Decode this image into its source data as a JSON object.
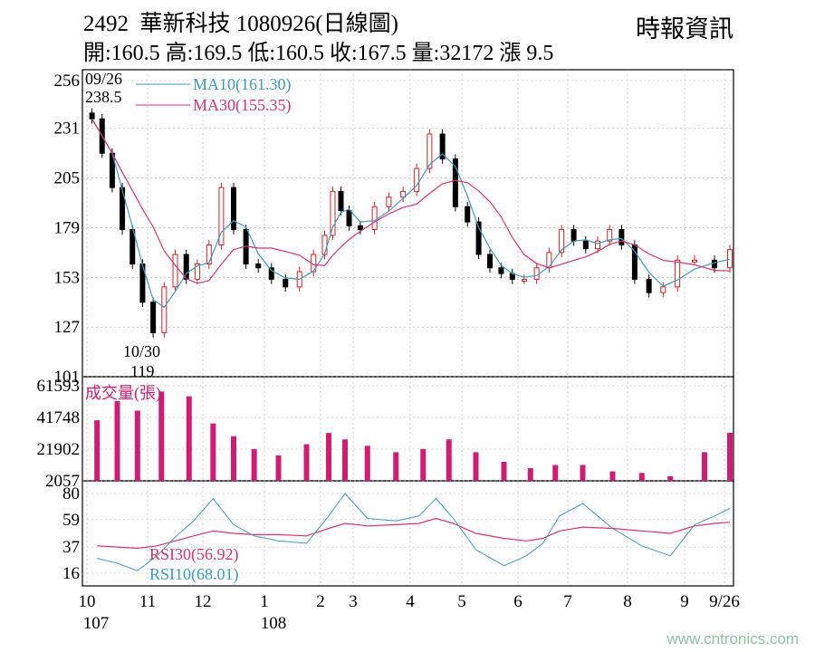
{
  "header": {
    "code": "2492",
    "name": "華新科技",
    "date_caption": "1080926(日線圖)",
    "quote_line": "開:160.5 高:169.5 低:160.5 收:167.5 量:32172 漲 9.5",
    "source": "時報資訊"
  },
  "watermark": "www.cntronics.com",
  "colors": {
    "ma10": "#3c9bbf",
    "ma30": "#d6336c",
    "volume": "#d01c75",
    "rsi30": "#d6336c",
    "rsi10": "#3c9bbf",
    "candle_up": "#d62020",
    "candle_down": "#000000",
    "grid": "#b0b0b0"
  },
  "chart_data": [
    {
      "type": "candlestick",
      "panel": "price",
      "ylim": [
        101,
        256
      ],
      "yticks": [
        "256",
        "231",
        "205",
        "179",
        "153",
        "127",
        "101"
      ],
      "x_month_labels": [
        "10",
        "11",
        "12",
        "1",
        "2",
        "3",
        "4",
        "5",
        "6",
        "7",
        "8",
        "9",
        "9/26"
      ],
      "x_year_labels": [
        "107",
        "108"
      ],
      "series": [
        {
          "name": "MA10",
          "label": "MA10(161.30)",
          "value": 161.3
        },
        {
          "name": "MA30",
          "label": "MA30(155.35)",
          "value": 155.35
        }
      ],
      "annotations": [
        {
          "date": "09/26",
          "price": "238.5"
        },
        {
          "date": "10/30",
          "price": "119"
        }
      ],
      "close_path": [
        [
          "10",
          236
        ],
        [
          "10",
          218
        ],
        [
          "10",
          200
        ],
        [
          "10",
          178
        ],
        [
          "10",
          160
        ],
        [
          "10",
          140
        ],
        [
          "11",
          124
        ],
        [
          "11",
          148
        ],
        [
          "11",
          165
        ],
        [
          "11",
          152
        ],
        [
          "11",
          160
        ],
        [
          "12",
          170
        ],
        [
          "12",
          200
        ],
        [
          "12",
          178
        ],
        [
          "12",
          160
        ],
        [
          "12",
          158
        ],
        [
          "1",
          152
        ],
        [
          "1",
          148
        ],
        [
          "1",
          156
        ],
        [
          "1",
          165
        ],
        [
          "2",
          175
        ],
        [
          "2",
          198
        ],
        [
          "2",
          188
        ],
        [
          "2",
          180
        ],
        [
          "3",
          178
        ],
        [
          "3",
          190
        ],
        [
          "3",
          195
        ],
        [
          "3",
          198
        ],
        [
          "4",
          210
        ],
        [
          "4",
          228
        ],
        [
          "4",
          215
        ],
        [
          "4",
          190
        ],
        [
          "5",
          182
        ],
        [
          "5",
          165
        ],
        [
          "5",
          158
        ],
        [
          "5",
          155
        ],
        [
          "5",
          152
        ],
        [
          "6",
          152
        ],
        [
          "6",
          158
        ],
        [
          "6",
          166
        ],
        [
          "6",
          178
        ],
        [
          "7",
          172
        ],
        [
          "7",
          168
        ],
        [
          "7",
          172
        ],
        [
          "7",
          178
        ],
        [
          "7",
          170
        ],
        [
          "8",
          152
        ],
        [
          "8",
          145
        ],
        [
          "8",
          148
        ],
        [
          "8",
          162
        ],
        [
          "9",
          162
        ],
        [
          "9",
          158
        ],
        [
          "9/26",
          167.5
        ]
      ]
    },
    {
      "type": "bar",
      "panel": "volume",
      "title": "成交量(張)",
      "ylim": [
        2057,
        61593
      ],
      "yticks": [
        "61593",
        "41748",
        "21902",
        "2057"
      ],
      "values_by_period": [
        [
          "10",
          40000
        ],
        [
          "10",
          52000
        ],
        [
          "10",
          46000
        ],
        [
          "11",
          58000
        ],
        [
          "11",
          55000
        ],
        [
          "12",
          38000
        ],
        [
          "12",
          30000
        ],
        [
          "12",
          22000
        ],
        [
          "1",
          18000
        ],
        [
          "1",
          25000
        ],
        [
          "2",
          32000
        ],
        [
          "2",
          28000
        ],
        [
          "3",
          24000
        ],
        [
          "3",
          20000
        ],
        [
          "4",
          22000
        ],
        [
          "4",
          28000
        ],
        [
          "5",
          20000
        ],
        [
          "5",
          14000
        ],
        [
          "6",
          10000
        ],
        [
          "6",
          12000
        ],
        [
          "7",
          12000
        ],
        [
          "7",
          8000
        ],
        [
          "8",
          7000
        ],
        [
          "8",
          5000
        ],
        [
          "9",
          20000
        ],
        [
          "9/26",
          32172
        ]
      ]
    },
    {
      "type": "line",
      "panel": "rsi",
      "ylim": [
        16,
        80
      ],
      "yticks": [
        "80",
        "59",
        "37",
        "16"
      ],
      "series": [
        {
          "name": "RSI30",
          "label": "RSI30(56.92)",
          "value": 56.92
        },
        {
          "name": "RSI10",
          "label": "RSI10(68.01)",
          "value": 68.01
        }
      ],
      "rsi10_path": [
        [
          "10",
          28
        ],
        [
          "10",
          24
        ],
        [
          "10",
          18
        ],
        [
          "11",
          30
        ],
        [
          "11",
          45
        ],
        [
          "11",
          58
        ],
        [
          "12",
          76
        ],
        [
          "12",
          55
        ],
        [
          "12",
          46
        ],
        [
          "1",
          42
        ],
        [
          "1",
          40
        ],
        [
          "2",
          62
        ],
        [
          "2",
          80
        ],
        [
          "3",
          60
        ],
        [
          "3",
          58
        ],
        [
          "4",
          62
        ],
        [
          "4",
          76
        ],
        [
          "4",
          60
        ],
        [
          "5",
          35
        ],
        [
          "5",
          22
        ],
        [
          "6",
          30
        ],
        [
          "6",
          40
        ],
        [
          "6",
          62
        ],
        [
          "7",
          72
        ],
        [
          "7",
          52
        ],
        [
          "8",
          38
        ],
        [
          "8",
          30
        ],
        [
          "9",
          55
        ],
        [
          "9",
          62
        ],
        [
          "9/26",
          68.01
        ]
      ],
      "rsi30_path": [
        [
          "10",
          38
        ],
        [
          "10",
          37
        ],
        [
          "10",
          36
        ],
        [
          "11",
          38
        ],
        [
          "11",
          42
        ],
        [
          "11",
          46
        ],
        [
          "12",
          50
        ],
        [
          "12",
          48
        ],
        [
          "12",
          47
        ],
        [
          "1",
          47
        ],
        [
          "1",
          46
        ],
        [
          "2",
          52
        ],
        [
          "2",
          56
        ],
        [
          "3",
          54
        ],
        [
          "3",
          55
        ],
        [
          "4",
          56
        ],
        [
          "4",
          60
        ],
        [
          "4",
          56
        ],
        [
          "5",
          48
        ],
        [
          "5",
          44
        ],
        [
          "6",
          42
        ],
        [
          "6",
          44
        ],
        [
          "6",
          50
        ],
        [
          "7",
          53
        ],
        [
          "7",
          52
        ],
        [
          "8",
          50
        ],
        [
          "8",
          48
        ],
        [
          "9",
          54
        ],
        [
          "9",
          56
        ],
        [
          "9/26",
          56.92
        ]
      ]
    }
  ]
}
